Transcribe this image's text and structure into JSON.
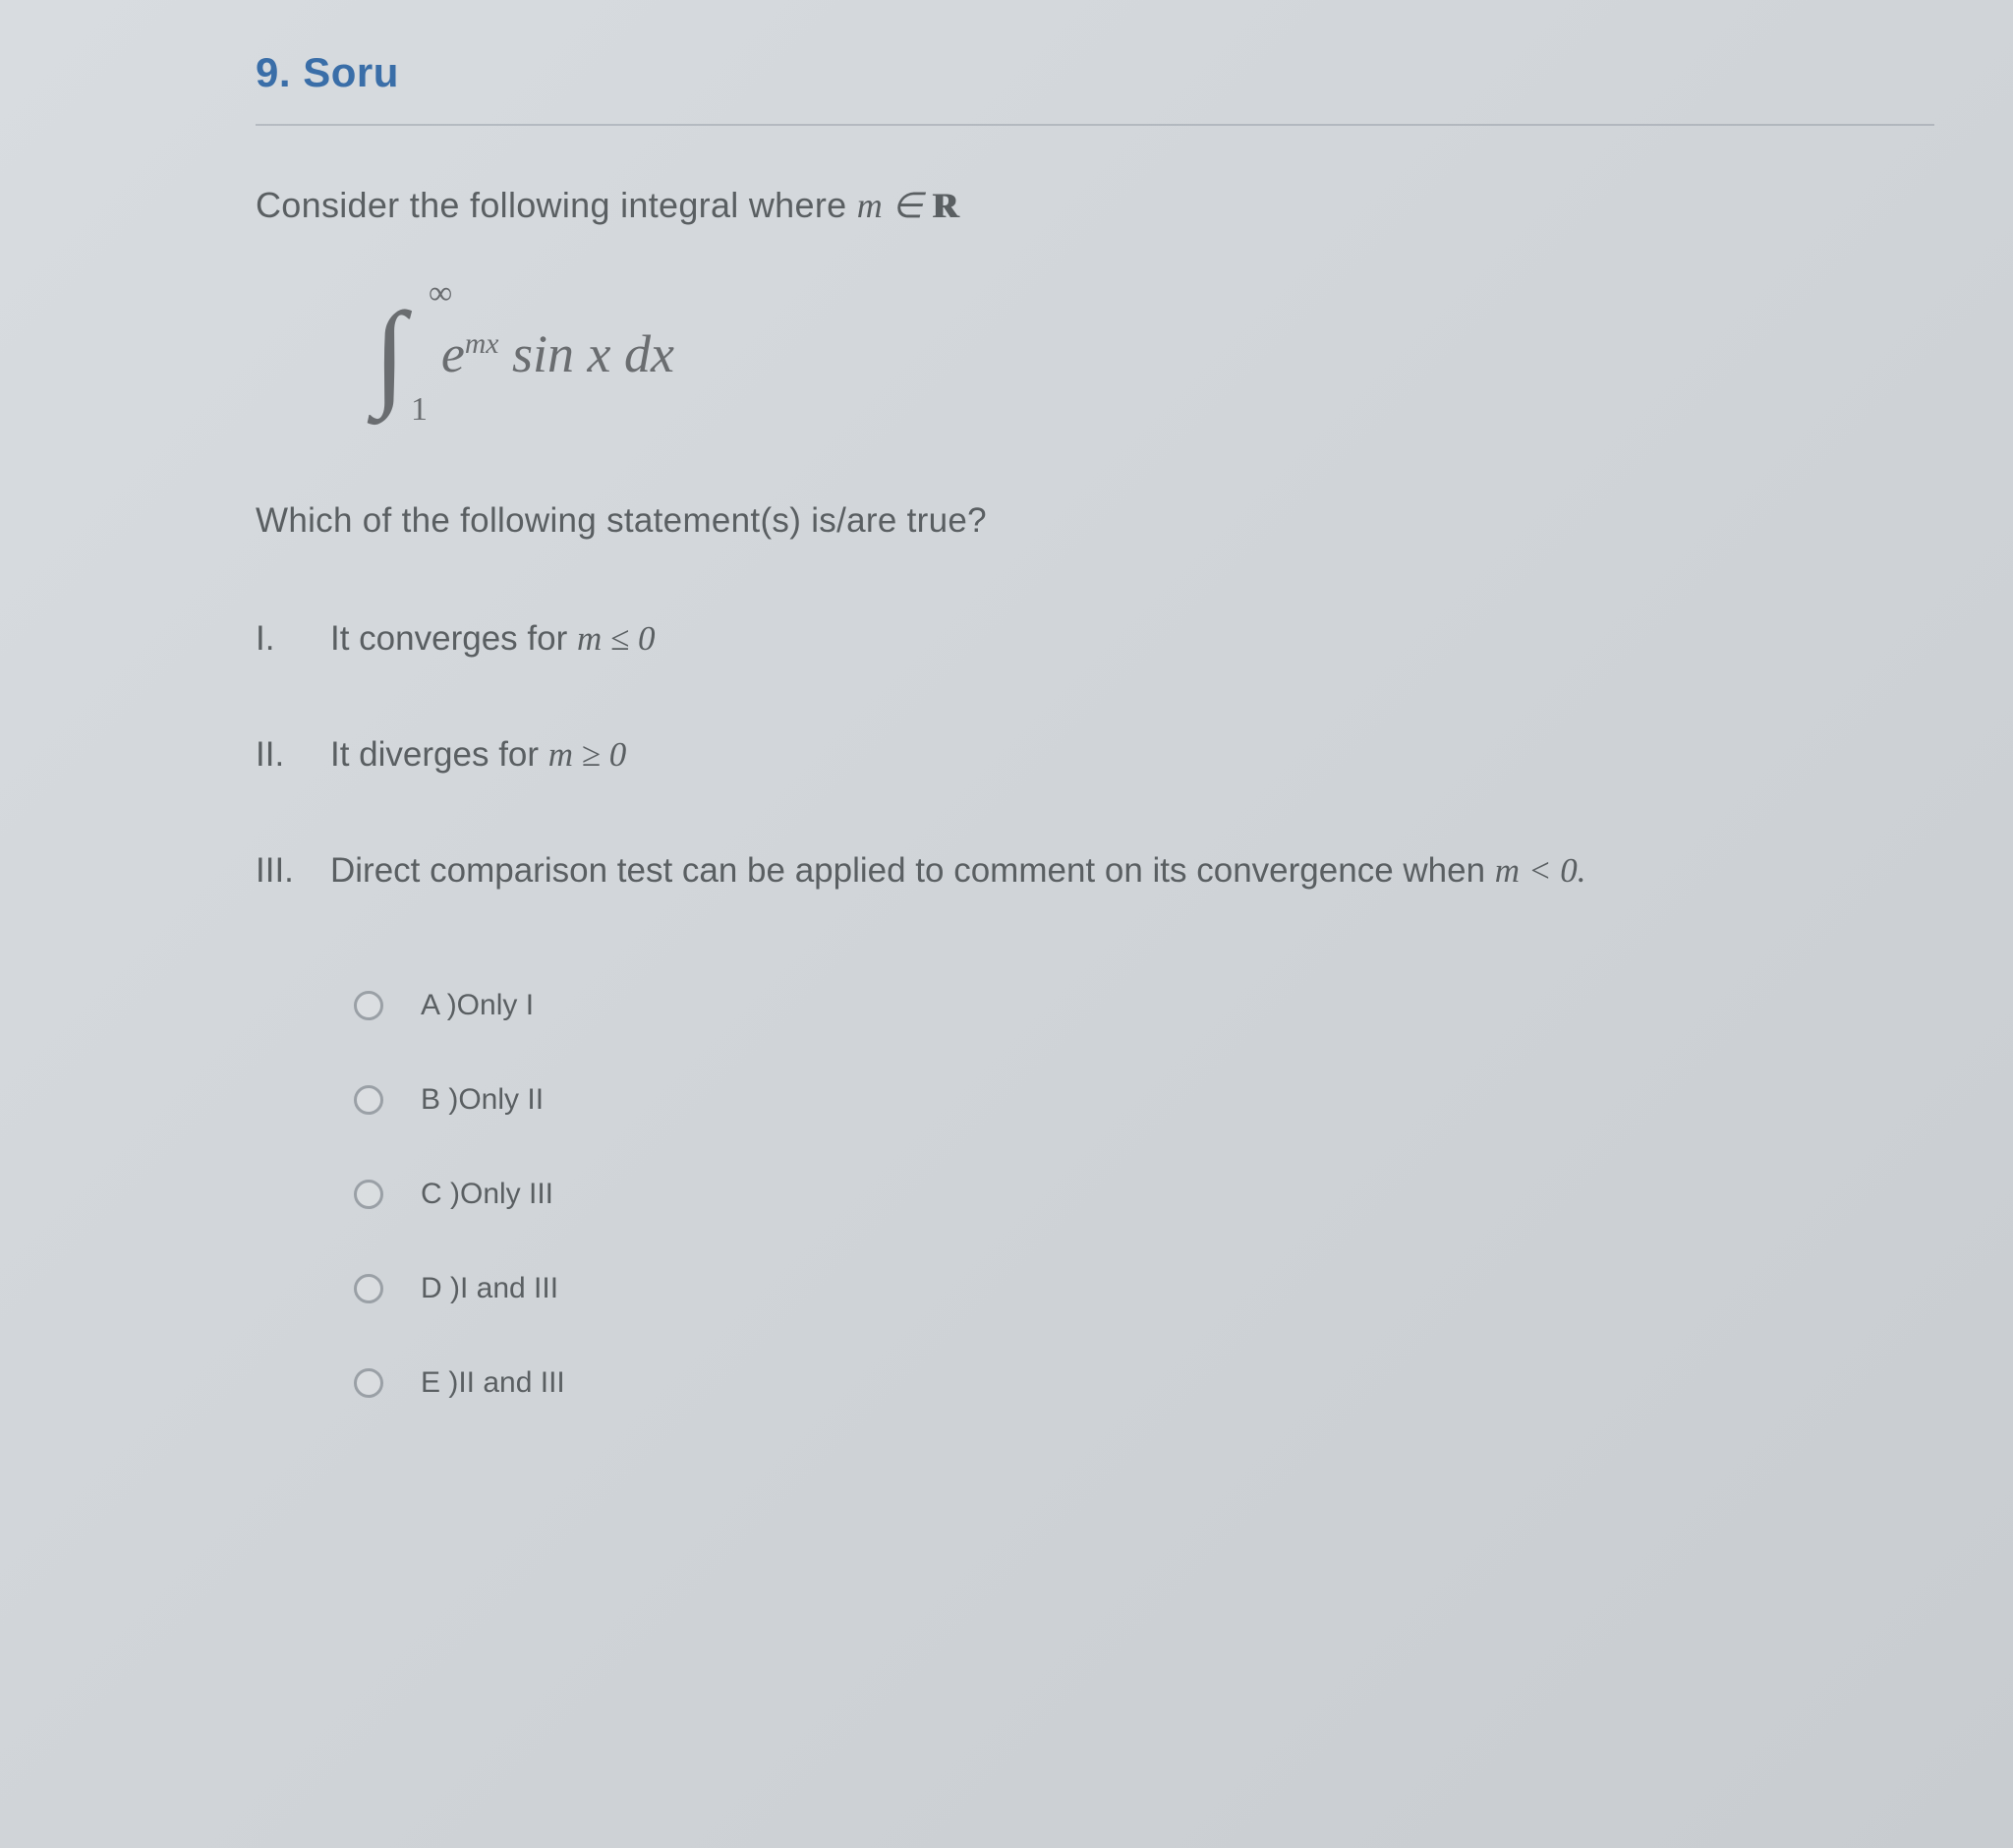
{
  "question": {
    "number": "9.",
    "label": "Soru",
    "prompt_prefix": "Consider the following integral where ",
    "prompt_math": "m ∈ ",
    "integral": {
      "lower": "1",
      "upper": "∞",
      "exp_sup": "mx",
      "body": " sin x dx"
    },
    "subprompt": "Which of the following statement(s) is/are true?",
    "statements": [
      {
        "roman": "I.",
        "text_pre": "It converges for ",
        "math": "m ≤ 0"
      },
      {
        "roman": "II.",
        "text_pre": "It diverges for ",
        "math": "m ≥ 0"
      },
      {
        "roman": "III.",
        "text_pre": "Direct comparison test can be applied to comment on its convergence when ",
        "math": "m < 0."
      }
    ],
    "options": [
      {
        "label": "A )Only  I"
      },
      {
        "label": "B )Only  II"
      },
      {
        "label": "C )Only  III"
      },
      {
        "label": "D )I  and  III"
      },
      {
        "label": "E )II  and  III"
      }
    ]
  },
  "style": {
    "title_color": "#3a6ea8",
    "body_color": "#5a5f62",
    "title_fontsize": 42,
    "body_fontsize": 36,
    "option_fontsize": 30
  }
}
